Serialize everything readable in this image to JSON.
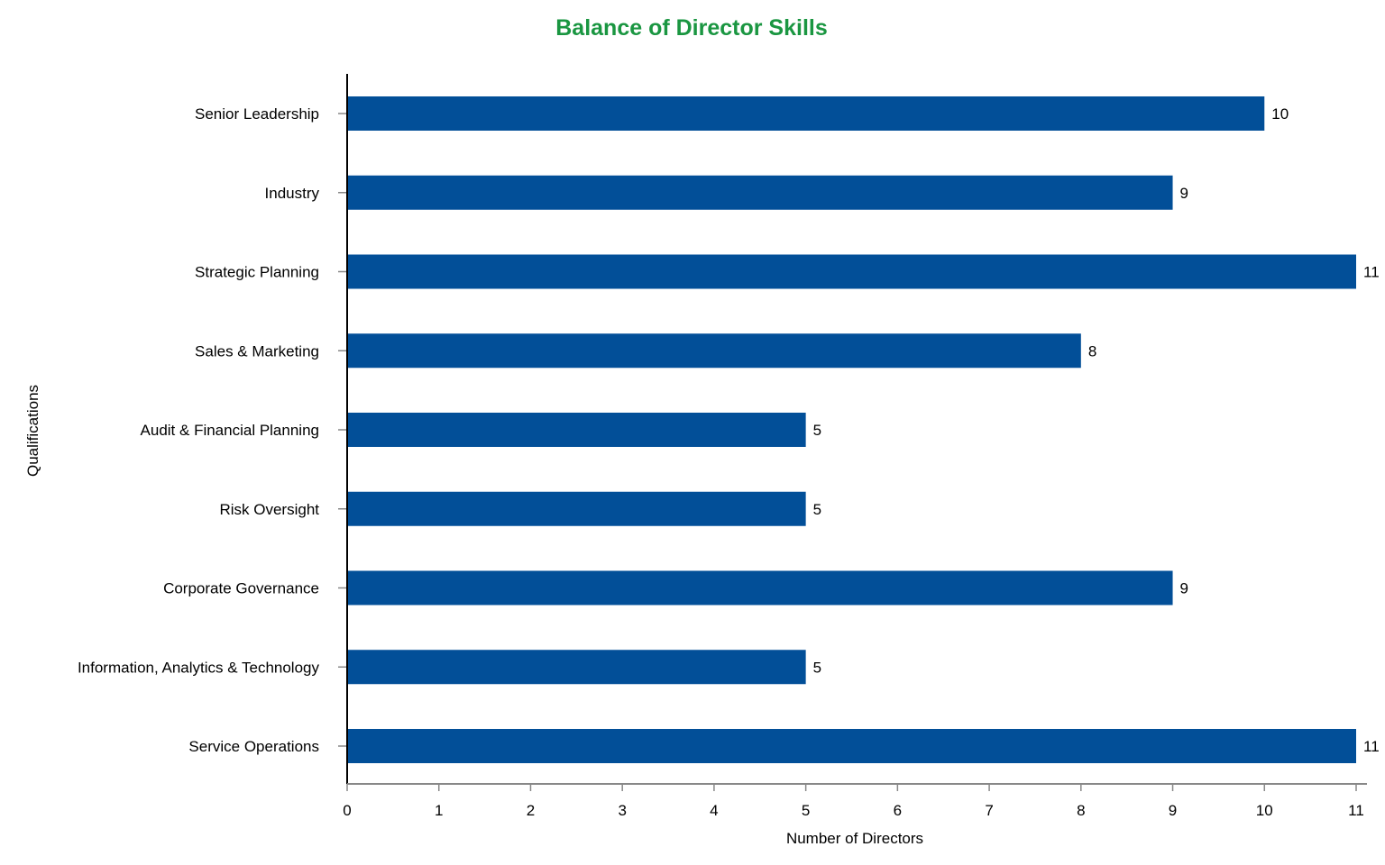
{
  "colors": {
    "bar": "#024f98",
    "title": "#1a9641",
    "axis": "#000000",
    "tick": "#888888"
  },
  "chart_data": {
    "type": "bar",
    "orientation": "horizontal",
    "title": "Balance of Director Skills",
    "xlabel": "Number of Directors",
    "ylabel": "Qualifications",
    "categories": [
      "Senior Leadership",
      "Industry",
      "Strategic Planning",
      "Sales & Marketing",
      "Audit & Financial Planning",
      "Risk Oversight",
      "Corporate Governance",
      "Information, Analytics & Technology",
      "Service Operations"
    ],
    "values": [
      10,
      9,
      11,
      8,
      5,
      5,
      9,
      5,
      11
    ],
    "xlim": [
      0,
      11
    ],
    "xticks": [
      "0",
      "1",
      "2",
      "3",
      "4",
      "5",
      "6",
      "7",
      "8",
      "9",
      "10",
      "11"
    ],
    "grid": false
  }
}
